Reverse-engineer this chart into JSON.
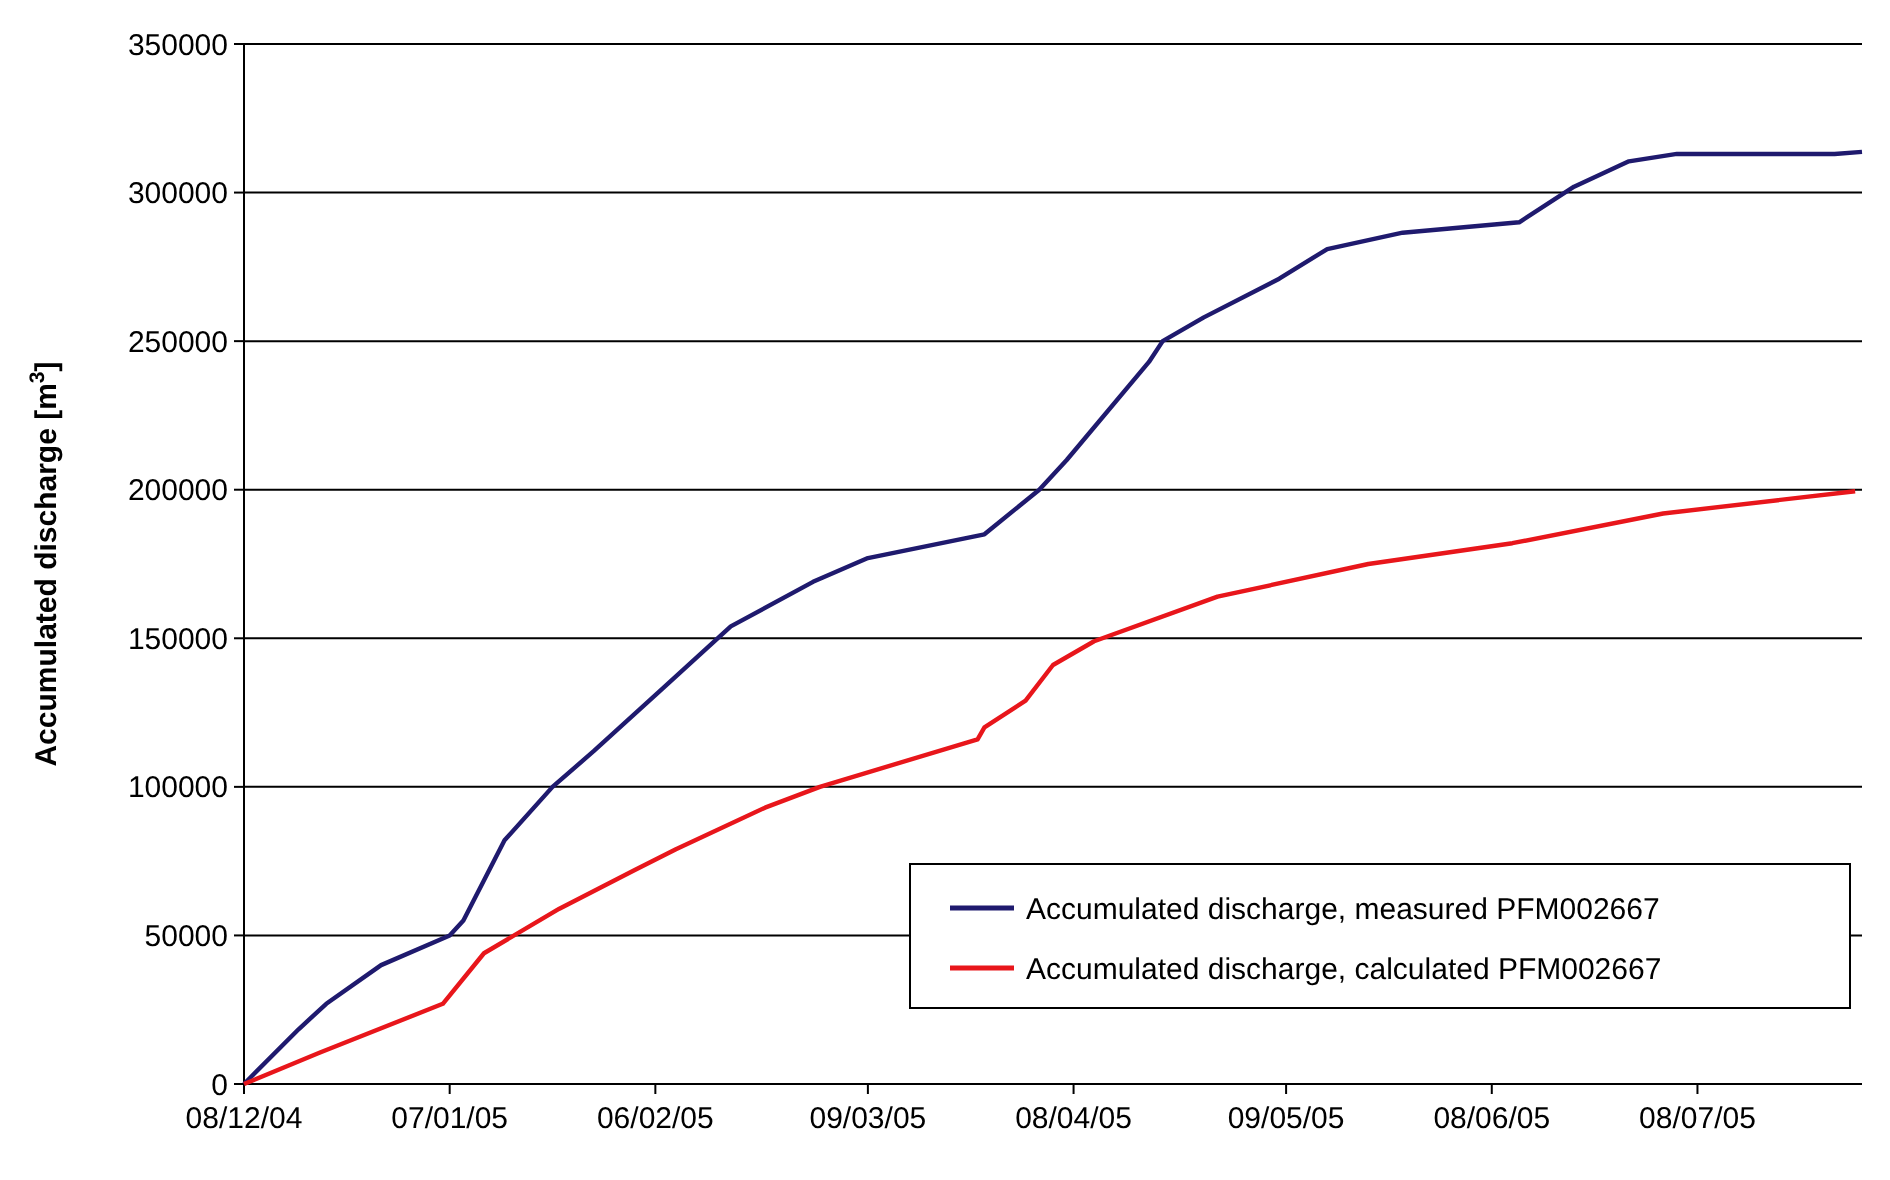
{
  "chart_data": {
    "type": "line",
    "ylabel": "Accumulated discharge [m$^{3}$]",
    "x": [
      "2004-12-08",
      "2004-12-16",
      "2004-12-20",
      "2004-12-28",
      "2005-01-07",
      "2005-01-09",
      "2005-01-15",
      "2005-01-22",
      "2005-01-28",
      "2005-02-07",
      "2005-02-17",
      "2005-03-01",
      "2005-03-09",
      "2005-03-26",
      "2005-04-03",
      "2005-04-07",
      "2005-04-19",
      "2005-04-21",
      "2005-04-27",
      "2005-05-08",
      "2005-05-15",
      "2005-05-26",
      "2005-06-12",
      "2005-06-20",
      "2005-06-28",
      "2005-07-05",
      "2005-07-28",
      "2005-08-01"
    ],
    "series": [
      {
        "name": "Accumulated discharge, measured PFM002667",
        "color": "#1f1a6e",
        "values": [
          0,
          18500,
          27000,
          40000,
          50000,
          55000,
          82000,
          100000,
          112000,
          133000,
          154000,
          169000,
          177000,
          185000,
          200000,
          210000,
          243000,
          250000,
          258000,
          271000,
          281000,
          286500,
          290000,
          302000,
          310500,
          313000,
          313000,
          313700
        ]
      },
      {
        "name": "Accumulated discharge, calculated PFM002667",
        "color": "#e8161b",
        "x": [
          "2004-12-08",
          "2004-12-19",
          "2005-01-06",
          "2005-01-12",
          "2005-01-23",
          "2005-02-03",
          "2005-02-09",
          "2005-02-22",
          "2005-03-02",
          "2005-03-25",
          "2005-03-26",
          "2005-04-01",
          "2005-04-05",
          "2005-04-11",
          "2005-04-29",
          "2005-05-21",
          "2005-06-11",
          "2005-07-03",
          "2005-07-31"
        ],
        "values": [
          0,
          10500,
          27000,
          44000,
          59000,
          72000,
          79000,
          93000,
          100000,
          116000,
          120000,
          129000,
          141000,
          149000,
          164000,
          175000,
          182000,
          192000,
          199500
        ]
      }
    ],
    "xlim": [
      "2004-12-08",
      "2005-08-01"
    ],
    "xticks": [
      {
        "value": "2004-12-08",
        "label": "08/12/04"
      },
      {
        "value": "2005-01-07",
        "label": "07/01/05"
      },
      {
        "value": "2005-02-06",
        "label": "06/02/05"
      },
      {
        "value": "2005-03-09",
        "label": "09/03/05"
      },
      {
        "value": "2005-04-08",
        "label": "08/04/05"
      },
      {
        "value": "2005-05-09",
        "label": "09/05/05"
      },
      {
        "value": "2005-06-08",
        "label": "08/06/05"
      },
      {
        "value": "2005-07-08",
        "label": "08/07/05"
      }
    ],
    "ylim": [
      0,
      350000
    ],
    "yticks": [
      0,
      50000,
      100000,
      150000,
      200000,
      250000,
      300000,
      350000
    ],
    "grid": "y",
    "legend": "bottom right",
    "marker": "none",
    "line_style": "solid"
  }
}
